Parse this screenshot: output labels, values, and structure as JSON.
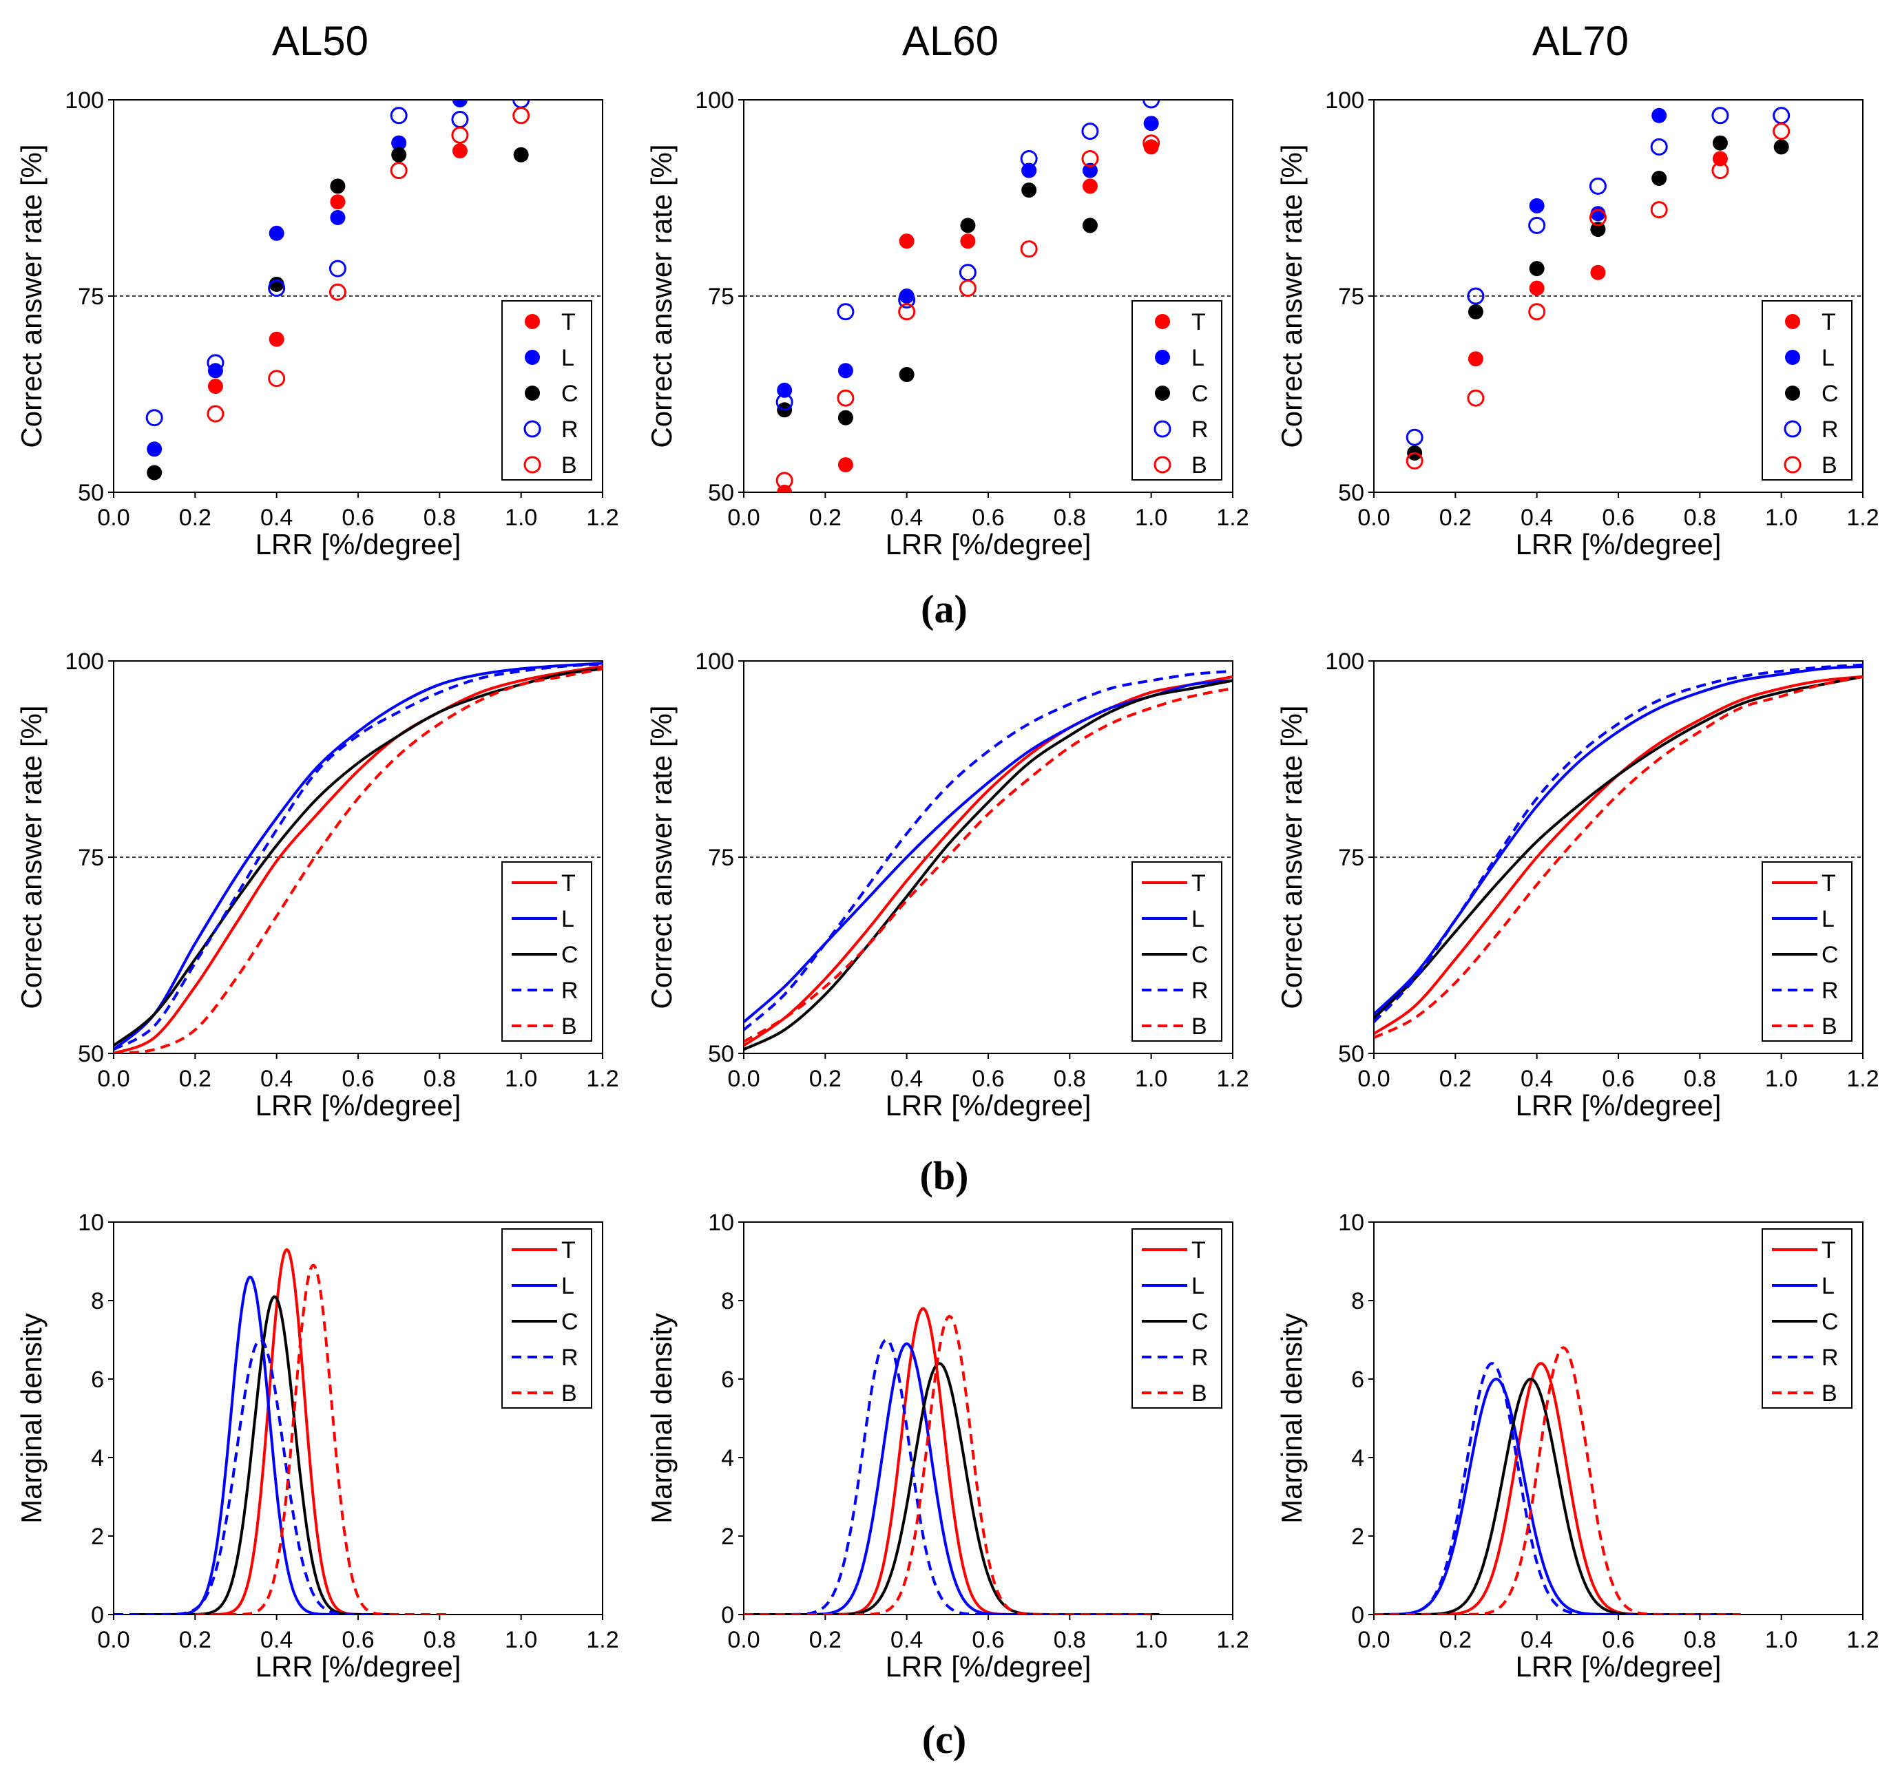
{
  "column_titles": [
    "AL50",
    "AL60",
    "AL70"
  ],
  "panel_labels": [
    "(a)",
    "(b)",
    "(c)"
  ],
  "colors": {
    "T": "#ff0000",
    "L": "#0000ff",
    "C": "#000000",
    "R": "#0000ff",
    "B": "#ff0000"
  },
  "legend_labels": [
    "T",
    "L",
    "C",
    "R",
    "B"
  ],
  "chart_data": [
    {
      "id": "a-AL50",
      "type": "scatter",
      "title": "AL50",
      "xlabel": "LRR [%/degree]",
      "ylabel": "Correct answer rate [%]",
      "xlim": [
        0,
        1.2
      ],
      "ylim": [
        50,
        100
      ],
      "xticks": [
        "0.0",
        "0.2",
        "0.4",
        "0.6",
        "0.8",
        "1.0",
        "1.2"
      ],
      "yticks": [
        "50",
        "75",
        "100"
      ],
      "reference_line": 75,
      "legend_position": "bottom-right",
      "x": [
        0.1,
        0.25,
        0.4,
        0.55,
        0.7,
        0.85,
        1.0
      ],
      "series": [
        {
          "name": "T",
          "values": [
            null,
            63.5,
            69.5,
            87,
            94.5,
            93.5,
            null
          ]
        },
        {
          "name": "L",
          "values": [
            55.5,
            65.5,
            83,
            85,
            94.5,
            100,
            null
          ]
        },
        {
          "name": "C",
          "values": [
            52.5,
            null,
            76.5,
            89,
            93,
            null,
            93
          ]
        },
        {
          "name": "R",
          "values": [
            59.5,
            66.5,
            76,
            78.5,
            98,
            97.5,
            100
          ]
        },
        {
          "name": "B",
          "values": [
            null,
            60,
            64.5,
            75.5,
            91,
            95.5,
            98
          ]
        }
      ]
    },
    {
      "id": "a-AL60",
      "type": "scatter",
      "title": "AL60",
      "xlabel": "LRR [%/degree]",
      "ylabel": "Correct answer rate [%]",
      "xlim": [
        0,
        1.2
      ],
      "ylim": [
        50,
        100
      ],
      "xticks": [
        "0.0",
        "0.2",
        "0.4",
        "0.6",
        "0.8",
        "1.0",
        "1.2"
      ],
      "yticks": [
        "50",
        "75",
        "100"
      ],
      "reference_line": 75,
      "legend_position": "bottom-right",
      "x": [
        0.1,
        0.25,
        0.4,
        0.55,
        0.7,
        0.85,
        1.0
      ],
      "series": [
        {
          "name": "T",
          "values": [
            50,
            53.5,
            82,
            82,
            91,
            89,
            94
          ]
        },
        {
          "name": "L",
          "values": [
            63,
            65.5,
            75,
            null,
            91,
            91,
            97
          ]
        },
        {
          "name": "C",
          "values": [
            60.5,
            59.5,
            65,
            84,
            88.5,
            84,
            null
          ]
        },
        {
          "name": "R",
          "values": [
            61.5,
            73,
            74.5,
            78,
            92.5,
            96,
            100
          ]
        },
        {
          "name": "B",
          "values": [
            51.5,
            62,
            73,
            76,
            81,
            92.5,
            94.5
          ]
        }
      ]
    },
    {
      "id": "a-AL70",
      "type": "scatter",
      "title": "AL70",
      "xlabel": "LRR [%/degree]",
      "ylabel": "Correct answer rate [%]",
      "xlim": [
        0,
        1.2
      ],
      "ylim": [
        50,
        100
      ],
      "xticks": [
        "0.0",
        "0.2",
        "0.4",
        "0.6",
        "0.8",
        "1.0",
        "1.2"
      ],
      "yticks": [
        "50",
        "75",
        "100"
      ],
      "reference_line": 75,
      "legend_position": "bottom-right",
      "x": [
        0.1,
        0.25,
        0.4,
        0.55,
        0.7,
        0.85,
        1.0
      ],
      "series": [
        {
          "name": "T",
          "values": [
            null,
            67,
            76,
            78,
            null,
            92.5,
            null
          ]
        },
        {
          "name": "L",
          "values": [
            null,
            null,
            86.5,
            85.5,
            98,
            null,
            null
          ]
        },
        {
          "name": "C",
          "values": [
            55,
            73,
            78.5,
            83.5,
            90,
            94.5,
            94
          ]
        },
        {
          "name": "R",
          "values": [
            57,
            75,
            84,
            89,
            94,
            98,
            98
          ]
        },
        {
          "name": "B",
          "values": [
            54,
            62,
            73,
            85,
            86,
            91,
            96
          ]
        }
      ]
    },
    {
      "id": "b-AL50",
      "type": "line",
      "xlabel": "LRR [%/degree]",
      "ylabel": "Correct answer rate [%]",
      "xlim": [
        0,
        1.2
      ],
      "ylim": [
        50,
        100
      ],
      "xticks": [
        "0.0",
        "0.2",
        "0.4",
        "0.6",
        "0.8",
        "1.0",
        "1.2"
      ],
      "yticks": [
        "50",
        "75",
        "100"
      ],
      "reference_line": 75,
      "legend_position": "bottom-right",
      "x": [
        0,
        0.1,
        0.2,
        0.3,
        0.4,
        0.5,
        0.6,
        0.7,
        0.8,
        0.9,
        1.0,
        1.1,
        1.2
      ],
      "series": [
        {
          "name": "T",
          "dashed": false,
          "values": [
            50.0,
            52.0,
            58.5,
            66.5,
            74.5,
            80.5,
            86.0,
            90.5,
            93.5,
            96.0,
            97.5,
            98.5,
            99.3
          ]
        },
        {
          "name": "L",
          "dashed": false,
          "values": [
            50.5,
            55.0,
            64.0,
            72.5,
            80.0,
            86.5,
            91.0,
            94.5,
            97.0,
            98.3,
            99.0,
            99.4,
            99.7
          ]
        },
        {
          "name": "C",
          "dashed": false,
          "values": [
            51.0,
            55.0,
            62.0,
            69.5,
            76.5,
            82.5,
            87.0,
            90.5,
            93.5,
            95.5,
            97.0,
            98.3,
            99.0
          ]
        },
        {
          "name": "R",
          "dashed": true,
          "values": [
            50.5,
            53.5,
            61.5,
            70.0,
            78.5,
            86.0,
            90.5,
            93.5,
            96.0,
            97.8,
            98.7,
            99.3,
            99.6
          ]
        },
        {
          "name": "B",
          "dashed": true,
          "values": [
            50.0,
            50.5,
            53.0,
            59.5,
            67.5,
            75.5,
            82.5,
            88.0,
            92.0,
            95.0,
            97.0,
            98.0,
            99.0
          ]
        }
      ]
    },
    {
      "id": "b-AL60",
      "type": "line",
      "xlabel": "LRR [%/degree]",
      "ylabel": "Correct answer rate [%]",
      "xlim": [
        0,
        1.2
      ],
      "ylim": [
        50,
        100
      ],
      "xticks": [
        "0.0",
        "0.2",
        "0.4",
        "0.6",
        "0.8",
        "1.0",
        "1.2"
      ],
      "yticks": [
        "50",
        "75",
        "100"
      ],
      "reference_line": 75,
      "legend_position": "bottom-right",
      "x": [
        0,
        0.1,
        0.2,
        0.3,
        0.4,
        0.5,
        0.6,
        0.7,
        0.8,
        0.9,
        1.0,
        1.1,
        1.2
      ],
      "series": [
        {
          "name": "T",
          "dashed": false,
          "values": [
            51.0,
            54.5,
            59.5,
            65.5,
            72.0,
            78.0,
            83.5,
            88.0,
            91.5,
            94.0,
            96.0,
            97.0,
            98.0
          ]
        },
        {
          "name": "L",
          "dashed": false,
          "values": [
            54.0,
            58.5,
            64.0,
            69.5,
            75.0,
            80.0,
            84.5,
            88.5,
            91.5,
            94.0,
            95.5,
            97.0,
            97.5
          ]
        },
        {
          "name": "C",
          "dashed": false,
          "values": [
            50.5,
            53.0,
            57.5,
            63.5,
            70.0,
            76.5,
            82.0,
            87.0,
            90.5,
            93.5,
            95.5,
            96.5,
            97.5
          ]
        },
        {
          "name": "R",
          "dashed": true,
          "values": [
            53.0,
            57.5,
            64.0,
            71.0,
            78.0,
            84.0,
            88.5,
            92.0,
            94.5,
            96.5,
            97.5,
            98.3,
            98.7
          ]
        },
        {
          "name": "B",
          "dashed": true,
          "values": [
            51.5,
            54.5,
            58.5,
            63.5,
            69.5,
            75.0,
            80.5,
            85.0,
            89.0,
            92.0,
            94.0,
            95.5,
            96.5
          ]
        }
      ]
    },
    {
      "id": "b-AL70",
      "type": "line",
      "xlabel": "LRR [%/degree]",
      "ylabel": "Correct answer rate [%]",
      "xlim": [
        0,
        1.2
      ],
      "ylim": [
        50,
        100
      ],
      "xticks": [
        "0.0",
        "0.2",
        "0.4",
        "0.6",
        "0.8",
        "1.0",
        "1.2"
      ],
      "yticks": [
        "50",
        "75",
        "100"
      ],
      "reference_line": 75,
      "legend_position": "bottom-right",
      "x": [
        0,
        0.1,
        0.2,
        0.3,
        0.4,
        0.5,
        0.6,
        0.7,
        0.8,
        0.9,
        1.0,
        1.1,
        1.2
      ],
      "series": [
        {
          "name": "T",
          "dashed": false,
          "values": [
            52.5,
            56.0,
            62.0,
            68.5,
            75.0,
            80.5,
            85.5,
            89.5,
            92.5,
            95.0,
            96.5,
            97.5,
            98.0
          ]
        },
        {
          "name": "L",
          "dashed": false,
          "values": [
            55.0,
            60.0,
            67.0,
            74.5,
            81.5,
            87.0,
            91.0,
            94.0,
            96.0,
            97.5,
            98.3,
            99.0,
            99.3
          ]
        },
        {
          "name": "C",
          "dashed": false,
          "values": [
            54.5,
            59.5,
            65.5,
            71.5,
            77.0,
            81.5,
            85.5,
            89.0,
            92.0,
            94.5,
            96.0,
            97.0,
            98.0
          ]
        },
        {
          "name": "R",
          "dashed": true,
          "values": [
            54.0,
            59.5,
            67.0,
            75.0,
            82.5,
            88.0,
            92.0,
            95.0,
            96.8,
            98.0,
            98.7,
            99.2,
            99.5
          ]
        },
        {
          "name": "B",
          "dashed": true,
          "values": [
            52.0,
            54.5,
            59.0,
            65.0,
            71.5,
            77.5,
            83.0,
            87.5,
            91.0,
            94.0,
            95.5,
            97.0,
            98.0
          ]
        }
      ]
    },
    {
      "id": "c-AL50",
      "type": "line",
      "subtype": "density",
      "xlabel": "LRR [%/degree]",
      "ylabel": "Marginal density",
      "xlim": [
        0,
        1.2
      ],
      "ylim": [
        0,
        10
      ],
      "xticks": [
        "0.0",
        "0.2",
        "0.4",
        "0.6",
        "0.8",
        "1.0",
        "1.2"
      ],
      "yticks": [
        "0",
        "2",
        "4",
        "6",
        "8",
        "10"
      ],
      "legend_position": "top-right",
      "series": [
        {
          "name": "T",
          "dashed": false,
          "peak_x": 0.425,
          "peak_y": 9.3,
          "sd": 0.043,
          "x_range": [
            0.15,
            0.7
          ]
        },
        {
          "name": "L",
          "dashed": false,
          "peak_x": 0.335,
          "peak_y": 8.6,
          "sd": 0.046,
          "x_range": [
            0.05,
            0.65
          ]
        },
        {
          "name": "C",
          "dashed": false,
          "peak_x": 0.395,
          "peak_y": 8.1,
          "sd": 0.049,
          "x_range": [
            0.05,
            0.7
          ]
        },
        {
          "name": "R",
          "dashed": true,
          "peak_x": 0.36,
          "peak_y": 7.0,
          "sd": 0.057,
          "x_range": [
            0.0,
            0.7
          ]
        },
        {
          "name": "B",
          "dashed": true,
          "peak_x": 0.49,
          "peak_y": 8.9,
          "sd": 0.045,
          "x_range": [
            0.2,
            0.83
          ]
        }
      ]
    },
    {
      "id": "c-AL60",
      "type": "line",
      "subtype": "density",
      "xlabel": "LRR [%/degree]",
      "ylabel": "Marginal density",
      "xlim": [
        0,
        1.2
      ],
      "ylim": [
        0,
        10
      ],
      "xticks": [
        "0.0",
        "0.2",
        "0.4",
        "0.6",
        "0.8",
        "1.0",
        "1.2"
      ],
      "yticks": [
        "0",
        "2",
        "4",
        "6",
        "8",
        "10"
      ],
      "legend_position": "top-right",
      "series": [
        {
          "name": "T",
          "dashed": false,
          "peak_x": 0.44,
          "peak_y": 7.8,
          "sd": 0.051,
          "x_range": [
            0.0,
            1.0
          ]
        },
        {
          "name": "L",
          "dashed": false,
          "peak_x": 0.4,
          "peak_y": 6.9,
          "sd": 0.058,
          "x_range": [
            0.0,
            1.0
          ]
        },
        {
          "name": "C",
          "dashed": false,
          "peak_x": 0.48,
          "peak_y": 6.4,
          "sd": 0.062,
          "x_range": [
            0.0,
            1.02
          ]
        },
        {
          "name": "R",
          "dashed": true,
          "peak_x": 0.35,
          "peak_y": 7.0,
          "sd": 0.057,
          "x_range": [
            0.0,
            1.0
          ]
        },
        {
          "name": "B",
          "dashed": true,
          "peak_x": 0.505,
          "peak_y": 7.6,
          "sd": 0.052,
          "x_range": [
            0.0,
            1.0
          ]
        }
      ]
    },
    {
      "id": "c-AL70",
      "type": "line",
      "subtype": "density",
      "xlabel": "LRR [%/degree]",
      "ylabel": "Marginal density",
      "xlim": [
        0,
        1.2
      ],
      "ylim": [
        0,
        10
      ],
      "xticks": [
        "0.0",
        "0.2",
        "0.4",
        "0.6",
        "0.8",
        "1.0",
        "1.2"
      ],
      "yticks": [
        "0",
        "2",
        "4",
        "6",
        "8",
        "10"
      ],
      "legend_position": "top-right",
      "series": [
        {
          "name": "T",
          "dashed": false,
          "peak_x": 0.41,
          "peak_y": 6.4,
          "sd": 0.062,
          "x_range": [
            0.0,
            0.88
          ]
        },
        {
          "name": "L",
          "dashed": false,
          "peak_x": 0.3,
          "peak_y": 6.0,
          "sd": 0.066,
          "x_range": [
            0.0,
            0.88
          ]
        },
        {
          "name": "C",
          "dashed": false,
          "peak_x": 0.385,
          "peak_y": 6.0,
          "sd": 0.066,
          "x_range": [
            0.0,
            0.88
          ]
        },
        {
          "name": "R",
          "dashed": true,
          "peak_x": 0.29,
          "peak_y": 6.4,
          "sd": 0.062,
          "x_range": [
            0.0,
            0.88
          ]
        },
        {
          "name": "B",
          "dashed": true,
          "peak_x": 0.465,
          "peak_y": 6.8,
          "sd": 0.058,
          "x_range": [
            0.0,
            0.9
          ]
        }
      ]
    }
  ]
}
